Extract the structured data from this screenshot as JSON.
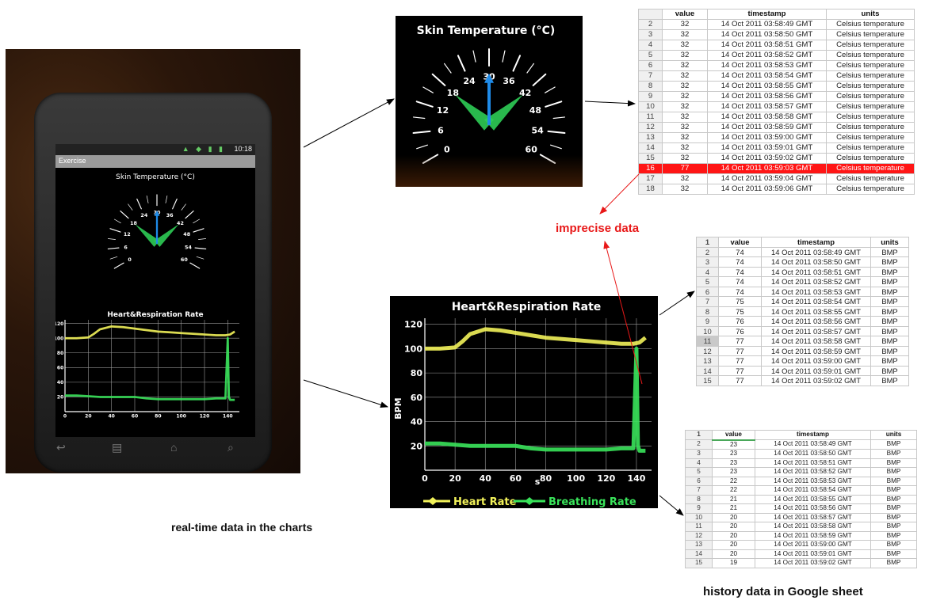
{
  "phone": {
    "status_time": "10:18",
    "status_icons": "▲ ◆ ▮ ▮",
    "app_title": "Exercise",
    "skin_title": "Skin Temperature (°C)",
    "chart_title": "Heart&Respiration Rate",
    "nav_icons": [
      "back-icon",
      "menu-icon",
      "home-icon",
      "search-icon"
    ]
  },
  "dial": {
    "title": "Skin Temperature (°C)",
    "tick_labels": [
      "0",
      "6",
      "12",
      "18",
      "24",
      "30",
      "36",
      "42",
      "48",
      "54",
      "60"
    ],
    "min": 0,
    "max": 60,
    "needle_value": 30,
    "colors": {
      "needle": "#1f8be8",
      "hands": "#2ecc55",
      "ticks": "#ffffff"
    }
  },
  "captions": {
    "left": "real-time data in the charts",
    "right": "history data in Google sheet",
    "imprecise": "imprecise data"
  },
  "chart_data": [
    {
      "type": "line",
      "title": "Heart&Respiration Rate",
      "xlabel": "s",
      "ylabel": "BPM",
      "x_ticks": [
        "0",
        "20",
        "40",
        "60",
        "80",
        "100",
        "120",
        "140"
      ],
      "y_ticks": [
        "20",
        "40",
        "60",
        "80",
        "100",
        "120"
      ],
      "xlim": [
        0,
        150
      ],
      "ylim": [
        0,
        125
      ],
      "grid": true,
      "legend": "bottom",
      "series": [
        {
          "name": "Heart Rate",
          "color": "#f2f25a",
          "x": [
            0,
            10,
            20,
            25,
            30,
            40,
            50,
            60,
            70,
            80,
            90,
            100,
            110,
            120,
            130,
            135,
            138,
            142,
            146
          ],
          "y": [
            100,
            100,
            101,
            106,
            112,
            116,
            115,
            113,
            111,
            109,
            108,
            107,
            106,
            105,
            104,
            104,
            104,
            105,
            109
          ]
        },
        {
          "name": "Breathing Rate",
          "color": "#39e35a",
          "x": [
            0,
            10,
            20,
            30,
            40,
            50,
            60,
            70,
            80,
            90,
            100,
            110,
            120,
            130,
            138,
            140,
            141,
            142,
            146
          ],
          "y": [
            22,
            22,
            21,
            20,
            20,
            20,
            20,
            18,
            17,
            17,
            17,
            17,
            17,
            18,
            18,
            100,
            20,
            16,
            16
          ]
        }
      ]
    }
  ],
  "sheets": {
    "skin": {
      "headers": [
        "",
        "value",
        "timestamp",
        "units"
      ],
      "rows": [
        [
          "2",
          "32",
          "14 Oct 2011 03:58:49 GMT",
          "Celsius temperature"
        ],
        [
          "3",
          "32",
          "14 Oct 2011 03:58:50 GMT",
          "Celsius temperature"
        ],
        [
          "4",
          "32",
          "14 Oct 2011 03:58:51 GMT",
          "Celsius temperature"
        ],
        [
          "5",
          "32",
          "14 Oct 2011 03:58:52 GMT",
          "Celsius temperature"
        ],
        [
          "6",
          "32",
          "14 Oct 2011 03:58:53 GMT",
          "Celsius temperature"
        ],
        [
          "7",
          "32",
          "14 Oct 2011 03:58:54 GMT",
          "Celsius temperature"
        ],
        [
          "8",
          "32",
          "14 Oct 2011 03:58:55 GMT",
          "Celsius temperature"
        ],
        [
          "9",
          "32",
          "14 Oct 2011 03:58:56 GMT",
          "Celsius temperature"
        ],
        [
          "10",
          "32",
          "14 Oct 2011 03:58:57 GMT",
          "Celsius temperature"
        ],
        [
          "11",
          "32",
          "14 Oct 2011 03:58:58 GMT",
          "Celsius temperature"
        ],
        [
          "12",
          "32",
          "14 Oct 2011 03:58:59 GMT",
          "Celsius temperature"
        ],
        [
          "13",
          "32",
          "14 Oct 2011 03:59:00 GMT",
          "Celsius temperature"
        ],
        [
          "14",
          "32",
          "14 Oct 2011 03:59:01 GMT",
          "Celsius temperature"
        ],
        [
          "15",
          "32",
          "14 Oct 2011 03:59:02 GMT",
          "Celsius temperature"
        ],
        [
          "16",
          "77",
          "14 Oct 2011 03:59:03 GMT",
          "Celsius temperature"
        ],
        [
          "17",
          "32",
          "14 Oct 2011 03:59:04 GMT",
          "Celsius temperature"
        ],
        [
          "18",
          "32",
          "14 Oct 2011 03:59:06 GMT",
          "Celsius temperature"
        ]
      ]
    },
    "heart": {
      "headers": [
        "1",
        "value",
        "timestamp",
        "units"
      ],
      "rows": [
        [
          "2",
          "74",
          "14 Oct 2011 03:58:49 GMT",
          "BMP"
        ],
        [
          "3",
          "74",
          "14 Oct 2011 03:58:50 GMT",
          "BMP"
        ],
        [
          "4",
          "74",
          "14 Oct 2011 03:58:51 GMT",
          "BMP"
        ],
        [
          "5",
          "74",
          "14 Oct 2011 03:58:52 GMT",
          "BMP"
        ],
        [
          "6",
          "74",
          "14 Oct 2011 03:58:53 GMT",
          "BMP"
        ],
        [
          "7",
          "75",
          "14 Oct 2011 03:58:54 GMT",
          "BMP"
        ],
        [
          "8",
          "75",
          "14 Oct 2011 03:58:55 GMT",
          "BMP"
        ],
        [
          "9",
          "76",
          "14 Oct 2011 03:58:56 GMT",
          "BMP"
        ],
        [
          "10",
          "76",
          "14 Oct 2011 03:58:57 GMT",
          "BMP"
        ],
        [
          "11",
          "77",
          "14 Oct 2011 03:58:58 GMT",
          "BMP"
        ],
        [
          "12",
          "77",
          "14 Oct 2011 03:58:59 GMT",
          "BMP"
        ],
        [
          "13",
          "77",
          "14 Oct 2011 03:59:00 GMT",
          "BMP"
        ],
        [
          "14",
          "77",
          "14 Oct 2011 03:59:01 GMT",
          "BMP"
        ],
        [
          "15",
          "77",
          "14 Oct 2011 03:59:02 GMT",
          "BMP"
        ]
      ]
    },
    "breathing": {
      "headers": [
        "1",
        "value",
        "timestamp",
        "units"
      ],
      "rows": [
        [
          "2",
          "23",
          "14 Oct 2011 03:58:49 GMT",
          "BMP"
        ],
        [
          "3",
          "23",
          "14 Oct 2011 03:58:50 GMT",
          "BMP"
        ],
        [
          "4",
          "23",
          "14 Oct 2011 03:58:51 GMT",
          "BMP"
        ],
        [
          "5",
          "23",
          "14 Oct 2011 03:58:52 GMT",
          "BMP"
        ],
        [
          "6",
          "22",
          "14 Oct 2011 03:58:53 GMT",
          "BMP"
        ],
        [
          "7",
          "22",
          "14 Oct 2011 03:58:54 GMT",
          "BMP"
        ],
        [
          "8",
          "21",
          "14 Oct 2011 03:58:55 GMT",
          "BMP"
        ],
        [
          "9",
          "21",
          "14 Oct 2011 03:58:56 GMT",
          "BMP"
        ],
        [
          "10",
          "20",
          "14 Oct 2011 03:58:57 GMT",
          "BMP"
        ],
        [
          "11",
          "20",
          "14 Oct 2011 03:58:58 GMT",
          "BMP"
        ],
        [
          "12",
          "20",
          "14 Oct 2011 03:58:59 GMT",
          "BMP"
        ],
        [
          "13",
          "20",
          "14 Oct 2011 03:59:00 GMT",
          "BMP"
        ],
        [
          "14",
          "20",
          "14 Oct 2011 03:59:01 GMT",
          "BMP"
        ],
        [
          "15",
          "19",
          "14 Oct 2011 03:59:02 GMT",
          "BMP"
        ]
      ]
    }
  }
}
